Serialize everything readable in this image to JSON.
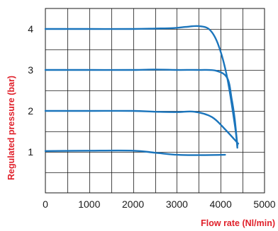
{
  "chart_data": {
    "type": "line",
    "xlabel": "Flow rate (Nl/min)",
    "ylabel": "Regulated pressure (bar)",
    "xlim": [
      0,
      5000
    ],
    "ylim": [
      0,
      4.5
    ],
    "x_ticks": [
      0,
      1000,
      2000,
      3000,
      4000,
      5000
    ],
    "y_ticks": [
      1,
      2,
      3,
      4
    ],
    "grid": true,
    "legend": "none",
    "colors": {
      "series": "#1b75bc",
      "axis_label": "#e0202a",
      "grid": "#1a1a1a"
    },
    "series": [
      {
        "x": [
          0,
          1000,
          2000,
          2500,
          3000,
          3500,
          4100
        ],
        "y": [
          1.02,
          1.03,
          1.03,
          0.98,
          0.93,
          0.92,
          0.93
        ]
      },
      {
        "x": [
          0,
          1000,
          2000,
          2500,
          3000,
          3400,
          3800,
          4100,
          4400
        ],
        "y": [
          2.0,
          2.0,
          2.0,
          1.98,
          1.97,
          1.98,
          1.85,
          1.55,
          1.2
        ]
      },
      {
        "x": [
          0,
          1000,
          2000,
          2500,
          3000,
          3500,
          3900,
          4150,
          4250,
          4320,
          4380
        ],
        "y": [
          3.0,
          3.0,
          3.0,
          3.01,
          3.0,
          3.0,
          2.98,
          2.8,
          2.3,
          1.8,
          1.15
        ]
      },
      {
        "x": [
          0,
          1000,
          2000,
          2500,
          2900,
          3200,
          3500,
          3750,
          3950,
          4150,
          4330,
          4380
        ],
        "y": [
          4.0,
          4.0,
          4.0,
          4.01,
          4.02,
          4.05,
          4.07,
          3.98,
          3.6,
          2.8,
          1.6,
          1.1
        ]
      }
    ]
  }
}
